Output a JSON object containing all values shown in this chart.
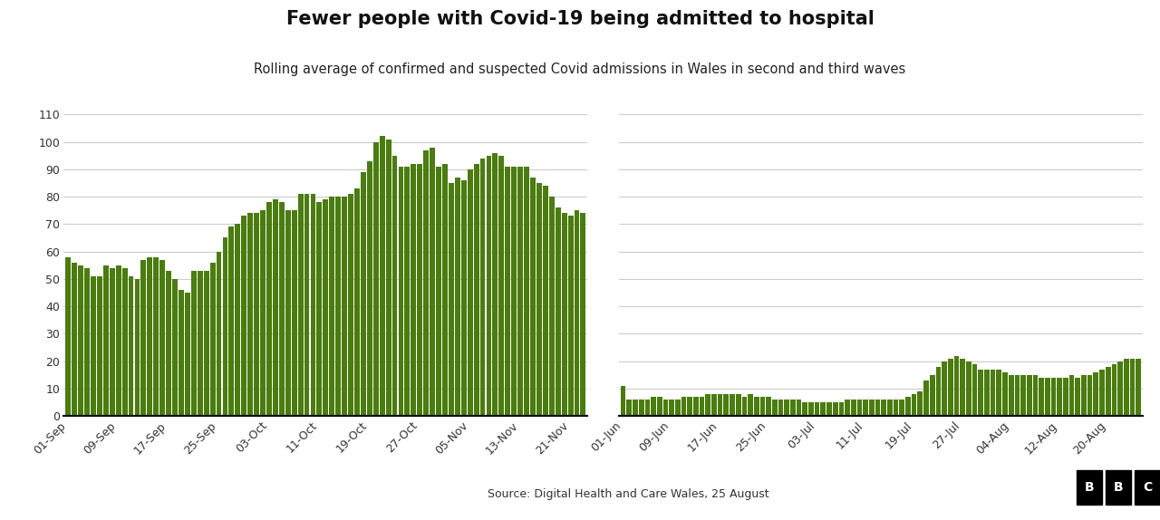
{
  "title": "Fewer people with Covid-19 being admitted to hospital",
  "subtitle": "Rolling average of confirmed and suspected Covid admissions in Wales in second and third waves",
  "source": "Source: Digital Health and Care Wales, 25 August",
  "bar_color": "#4a7c10",
  "background_color": "#ffffff",
  "chart1": {
    "values": [
      58,
      56,
      55,
      54,
      51,
      51,
      55,
      54,
      55,
      54,
      51,
      50,
      57,
      58,
      58,
      57,
      53,
      50,
      46,
      45,
      53,
      53,
      53,
      56,
      60,
      65,
      69,
      70,
      73,
      74,
      74,
      75,
      78,
      79,
      78,
      75,
      75,
      81,
      81,
      81,
      78,
      79,
      80,
      80,
      80,
      81,
      83,
      89,
      93,
      100,
      102,
      101,
      95,
      91,
      91,
      92,
      92,
      97,
      98,
      91,
      92,
      85,
      87,
      86,
      90,
      92,
      94,
      95,
      96,
      95,
      91,
      91,
      91,
      91,
      87,
      85,
      84,
      80,
      76,
      74,
      73,
      75,
      74
    ],
    "yticks": [
      0,
      10,
      20,
      30,
      40,
      50,
      60,
      70,
      80,
      90,
      100,
      110
    ],
    "xtick_positions": [
      0,
      8,
      16,
      24,
      32,
      40,
      48,
      56,
      64,
      72,
      80
    ],
    "xtick_labels": [
      "01-Sep",
      "09-Sep",
      "17-Sep",
      "25-Sep",
      "03-Oct",
      "11-Oct",
      "19-Oct",
      "27-Oct",
      "05-Nov",
      "13-Nov",
      "21-Nov"
    ]
  },
  "chart2": {
    "values": [
      11,
      6,
      6,
      6,
      6,
      7,
      7,
      6,
      6,
      6,
      7,
      7,
      7,
      7,
      8,
      8,
      8,
      8,
      8,
      8,
      7,
      8,
      7,
      7,
      7,
      6,
      6,
      6,
      6,
      6,
      5,
      5,
      5,
      5,
      5,
      5,
      5,
      6,
      6,
      6,
      6,
      6,
      6,
      6,
      6,
      6,
      6,
      7,
      8,
      9,
      13,
      15,
      18,
      20,
      21,
      22,
      21,
      20,
      19,
      17,
      17,
      17,
      17,
      16,
      15,
      15,
      15,
      15,
      15,
      14,
      14,
      14,
      14,
      14,
      15,
      14,
      15,
      15,
      16,
      17,
      18,
      19,
      20,
      21,
      21,
      21
    ],
    "yticks": [
      0,
      10,
      20,
      30,
      40,
      50,
      60,
      70,
      80,
      90,
      100,
      110
    ],
    "xtick_positions": [
      0,
      8,
      16,
      24,
      32,
      40,
      48,
      56,
      64,
      72,
      80
    ],
    "xtick_labels": [
      "01-Jun",
      "09-Jun",
      "17-Jun",
      "25-Jun",
      "03-Jul",
      "11-Jul",
      "19-Jul",
      "27-Jul",
      "04-Aug",
      "12-Aug",
      "20-Aug"
    ]
  }
}
